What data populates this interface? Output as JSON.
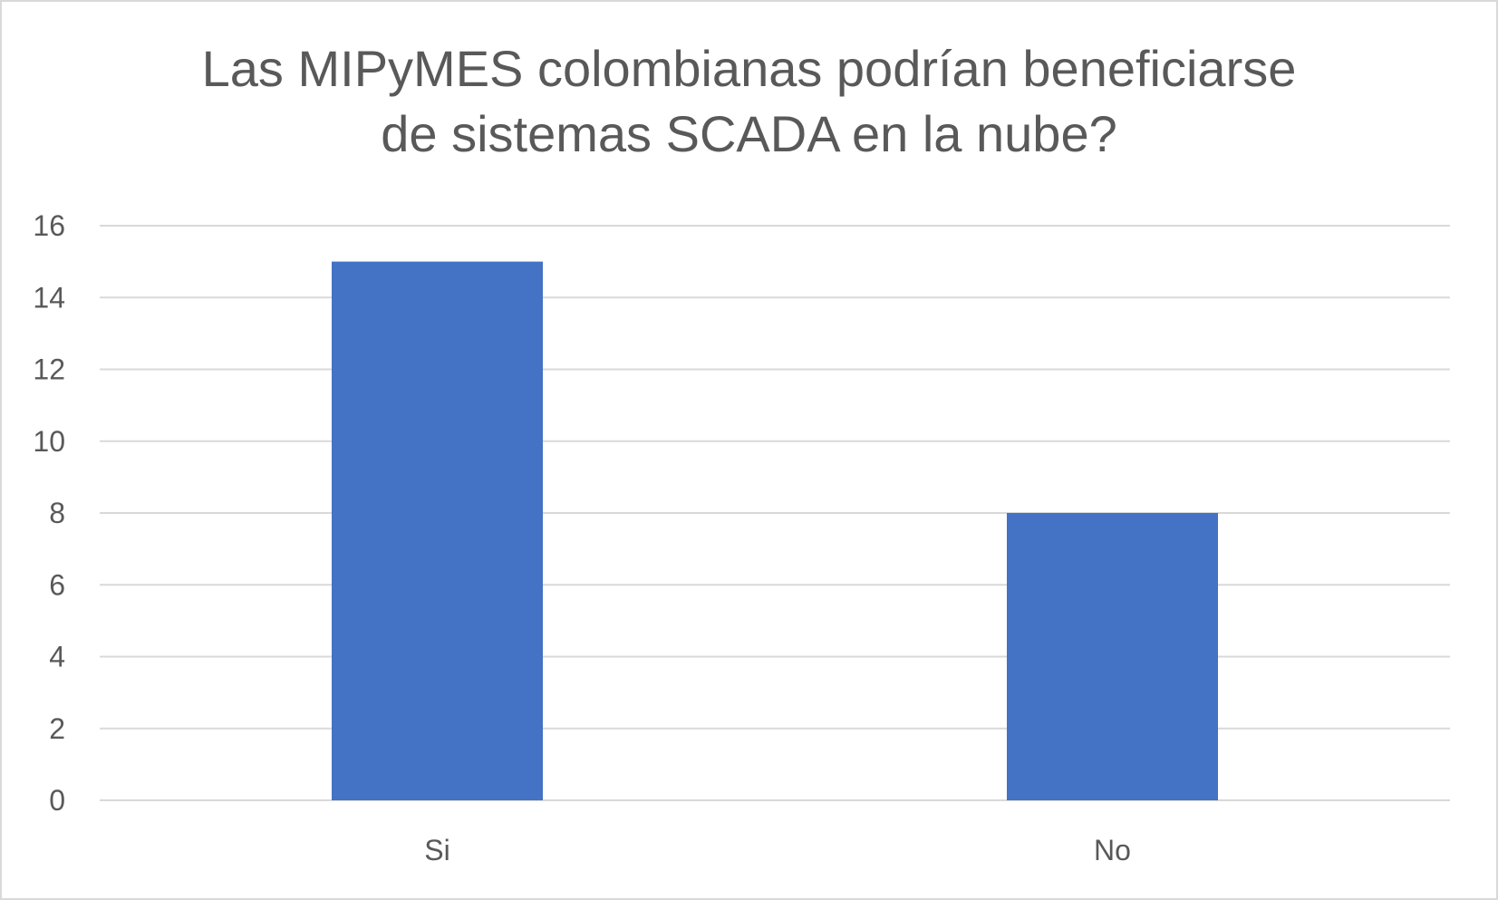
{
  "chart_data": {
    "type": "bar",
    "title_lines": [
      "Las MIPyMES colombianas podrían beneficiarse",
      "de sistemas SCADA en la nube?"
    ],
    "categories": [
      "Si",
      "No"
    ],
    "values": [
      15,
      8
    ],
    "ylim": [
      0,
      16
    ],
    "yticks": [
      "0",
      "2",
      "4",
      "6",
      "8",
      "10",
      "12",
      "14",
      "16"
    ],
    "grid": true,
    "colors": {
      "bar": "#4472c4",
      "grid": "#d9d9d9",
      "text": "#595959"
    }
  }
}
